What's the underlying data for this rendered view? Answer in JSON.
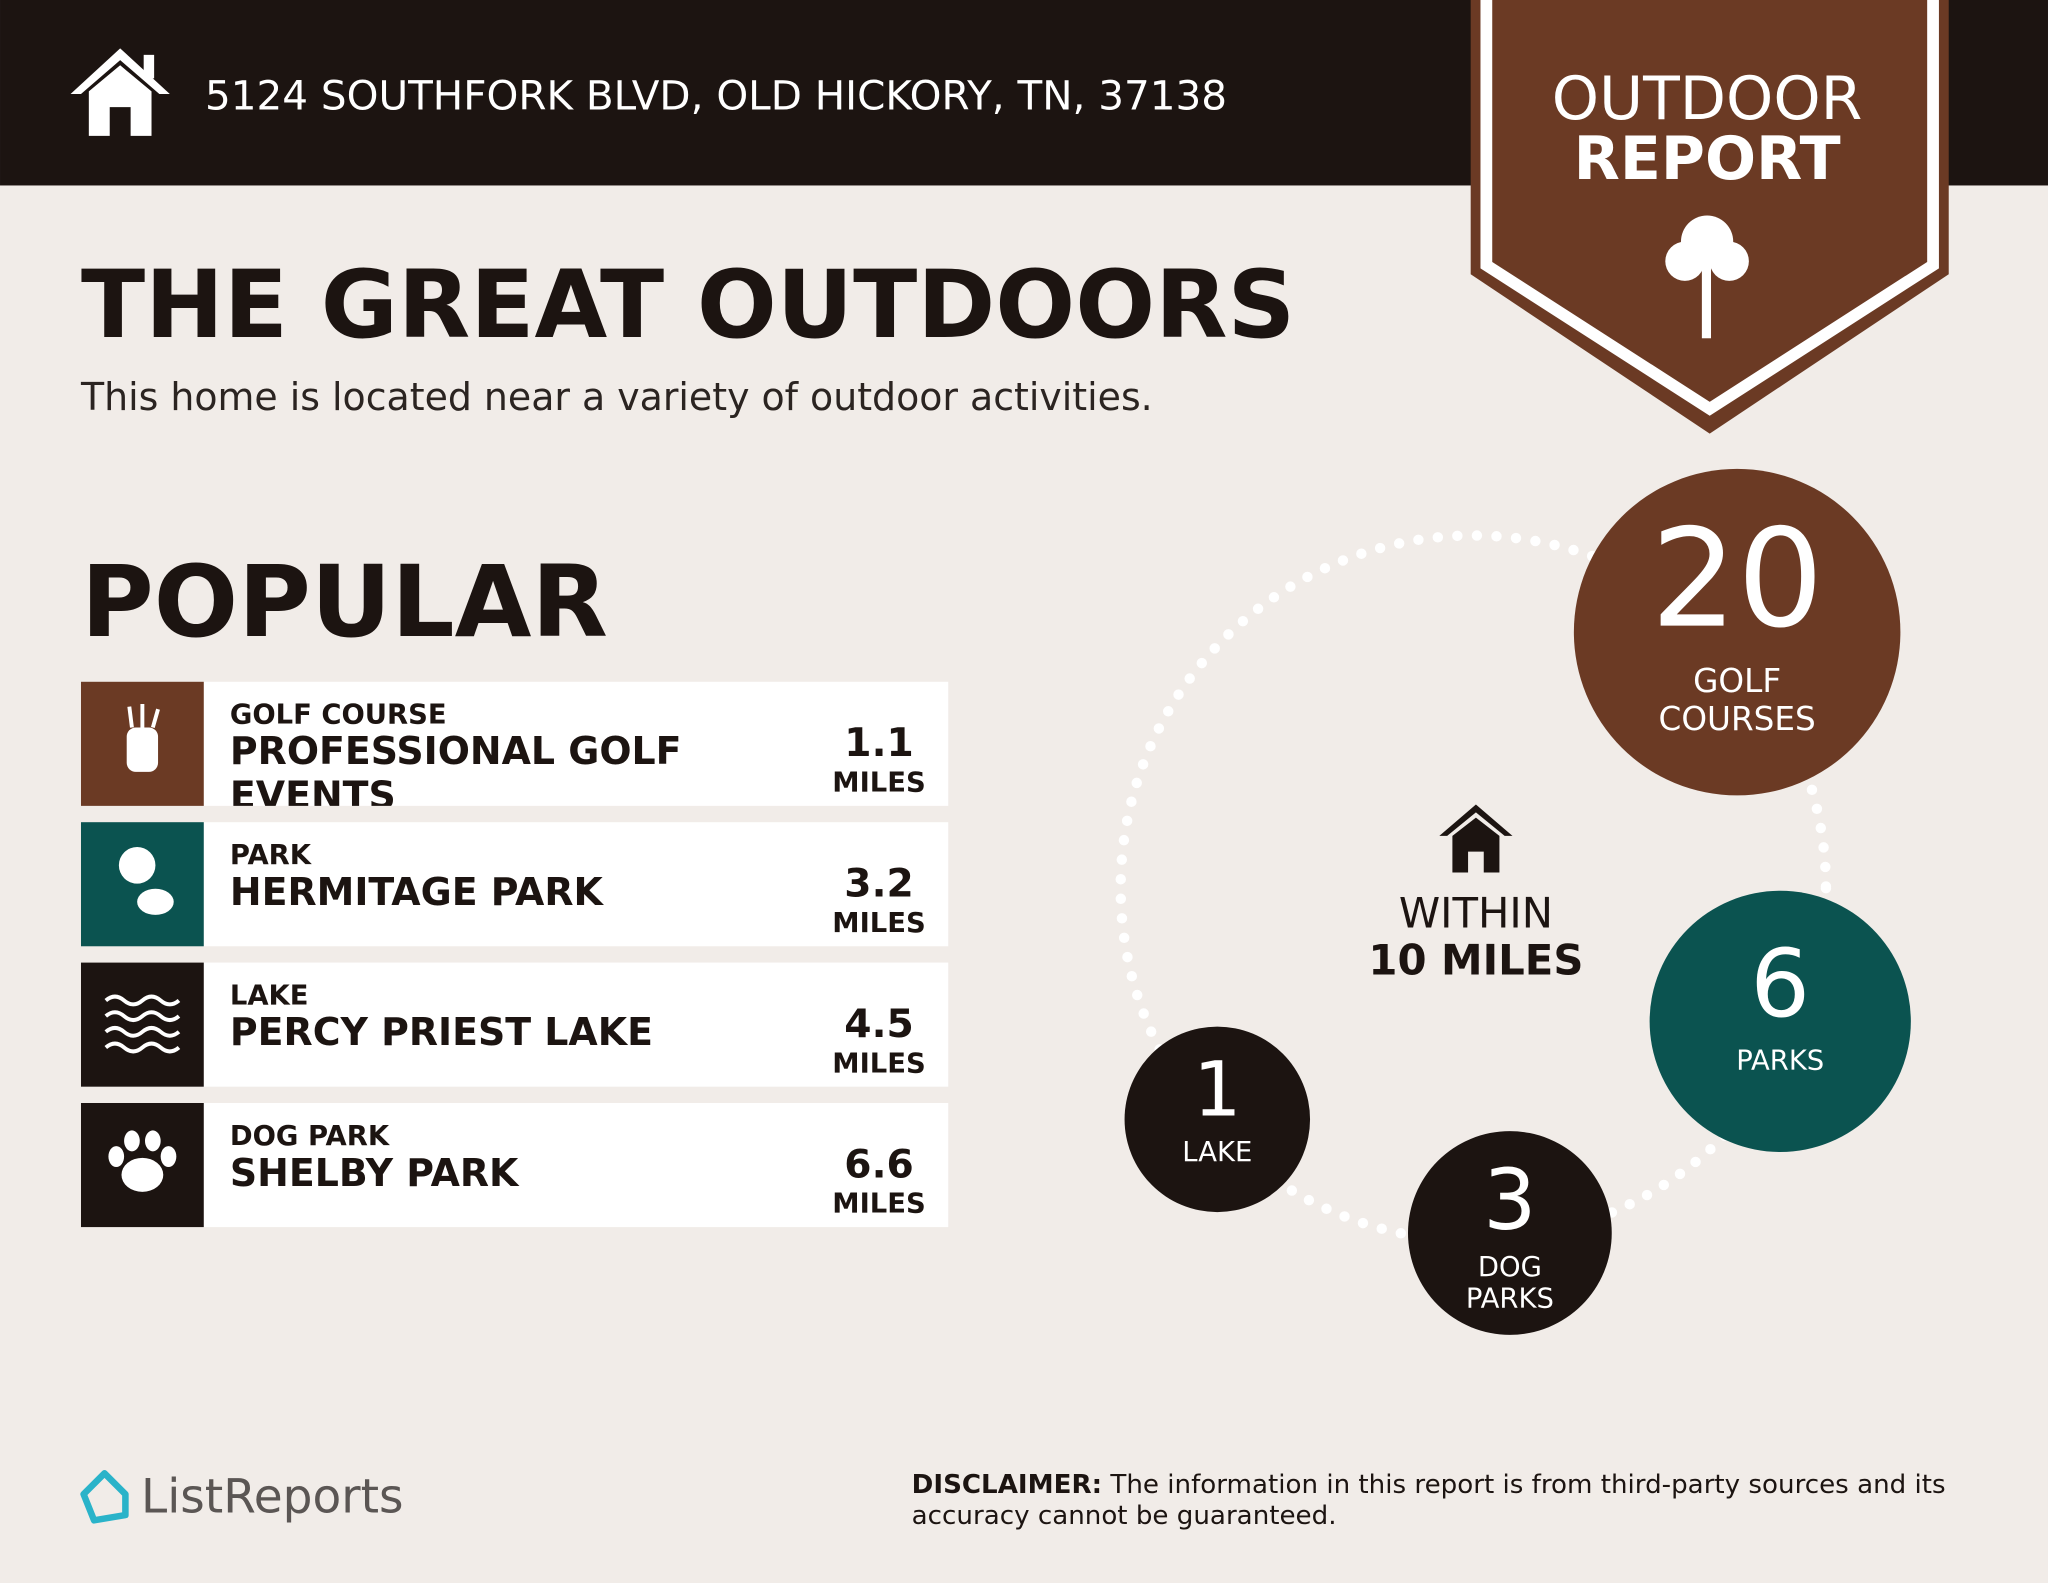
{
  "header": {
    "address": "5124 SOUTHFORK BLVD, OLD HICKORY, TN, 37138"
  },
  "badge": {
    "line1": "OUTDOOR",
    "line2": "REPORT"
  },
  "heading": {
    "title": "THE GREAT OUTDOORS",
    "subtitle": "This home is located near a variety of outdoor activities."
  },
  "popular": {
    "title": "POPULAR",
    "items": [
      {
        "category": "GOLF COURSE",
        "name": "PROFESSIONAL GOLF EVENTS",
        "distance": 1.1,
        "unit": "MILES"
      },
      {
        "category": "PARK",
        "name": "HERMITAGE PARK",
        "distance": 3.2,
        "unit": "MILES"
      },
      {
        "category": "LAKE",
        "name": "PERCY PRIEST LAKE",
        "distance": 4.5,
        "unit": "MILES"
      },
      {
        "category": "DOG PARK",
        "name": "SHELBY PARK",
        "distance": 6.6,
        "unit": "MILES"
      }
    ]
  },
  "summary": {
    "within": "WITHIN",
    "radius": "10 MILES",
    "counts": [
      {
        "count": 20,
        "label": "GOLF COURSES"
      },
      {
        "count": 6,
        "label": "PARKS"
      },
      {
        "count": 3,
        "label": "DOG PARKS"
      },
      {
        "count": 1,
        "label": "LAKE"
      }
    ]
  },
  "footer": {
    "brand": "ListReports",
    "disclaimer_label": "DISCLAIMER:",
    "disclaimer_text": "The information in this report is from third-party sources and its accuracy cannot be guaranteed."
  }
}
